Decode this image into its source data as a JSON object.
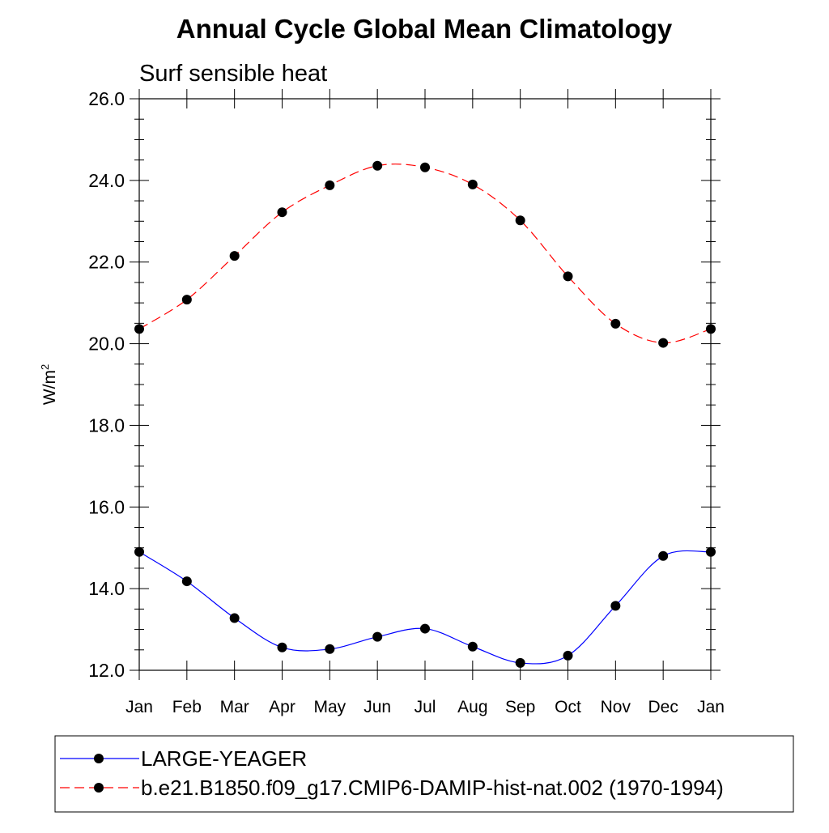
{
  "chart_data": {
    "type": "line",
    "title": "Annual Cycle Global Mean Climatology",
    "subtitle": "Surf sensible heat",
    "ylabel": "W/m",
    "ylabel_superscript": "2",
    "ylim": [
      12.0,
      26.0
    ],
    "yticks": [
      "12.0",
      "14.0",
      "16.0",
      "18.0",
      "20.0",
      "22.0",
      "24.0",
      "26.0"
    ],
    "categories": [
      "Jan",
      "Feb",
      "Mar",
      "Apr",
      "May",
      "Jun",
      "Jul",
      "Aug",
      "Sep",
      "Oct",
      "Nov",
      "Dec",
      "Jan"
    ],
    "grid": false,
    "legend_position": "bottom",
    "series": [
      {
        "name": "LARGE-YEAGER",
        "color": "#0000ff",
        "line_style": "solid",
        "marker": "filled-circle",
        "values": [
          14.9,
          14.18,
          13.28,
          12.56,
          12.52,
          12.82,
          13.02,
          12.58,
          12.18,
          12.36,
          13.58,
          14.8,
          14.9
        ]
      },
      {
        "name": "b.e21.B1850.f09_g17.CMIP6-DAMIP-hist-nat.002 (1970-1994)",
        "color": "#ff0000",
        "line_style": "dashed",
        "marker": "filled-circle",
        "values": [
          20.36,
          21.08,
          22.15,
          23.22,
          23.88,
          24.36,
          24.32,
          23.9,
          23.02,
          21.65,
          20.49,
          20.02,
          20.36
        ]
      }
    ]
  }
}
